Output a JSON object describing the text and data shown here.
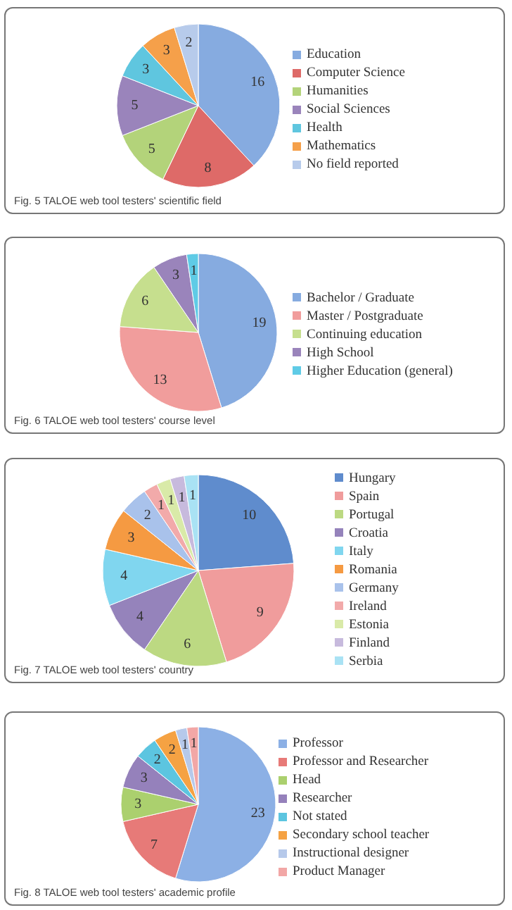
{
  "chart_data": [
    {
      "type": "pie",
      "title": "Fig. 5 TALOE web tool testers' scientific field",
      "categories": [
        "Education",
        "Computer Science",
        "Humanities",
        "Social Sciences",
        "Health",
        "Mathematics",
        "No field reported"
      ],
      "values": [
        16,
        8,
        5,
        5,
        3,
        3,
        2
      ],
      "colors": [
        "#86abe0",
        "#de6a68",
        "#b3d37a",
        "#9a84bb",
        "#5fc6df",
        "#f5a04a",
        "#b7cbeb"
      ],
      "data_labels": true,
      "legend": "right"
    },
    {
      "type": "pie",
      "title": "Fig. 6 TALOE web tool testers' course level",
      "categories": [
        "Bachelor / Graduate",
        "Master / Postgraduate",
        "Continuing education",
        "High School",
        "Higher Education (general)"
      ],
      "values": [
        19,
        13,
        6,
        3,
        1
      ],
      "colors": [
        "#86abe0",
        "#f19d9c",
        "#c6df8e",
        "#9a84bb",
        "#5fcbe6"
      ],
      "data_labels": true,
      "legend": "right"
    },
    {
      "type": "pie",
      "title": "Fig. 7 TALOE web tool testers' country",
      "categories": [
        "Hungary",
        "Spain",
        "Portugal",
        "Croatia",
        "Italy",
        "Romania",
        "Germany",
        "Ireland",
        "Estonia",
        "Finland",
        "Serbia"
      ],
      "values": [
        10,
        9,
        6,
        4,
        4,
        3,
        2,
        1,
        1,
        1,
        1
      ],
      "colors": [
        "#5f8ccd",
        "#f09c9c",
        "#bcd982",
        "#9583bb",
        "#80d6ef",
        "#f59a42",
        "#a9c2eb",
        "#f2aaaa",
        "#d9eaa8",
        "#c7badd",
        "#a9e2f4"
      ],
      "data_labels": true,
      "legend": "right"
    },
    {
      "type": "pie",
      "title": "Fig. 8 TALOE web tool testers' academic profile",
      "categories": [
        "Professor",
        "Professor and Researcher",
        "Head",
        "Researcher",
        "Not stated",
        "Secondary school teacher",
        "Instructional designer",
        "Product Manager"
      ],
      "values": [
        23,
        7,
        3,
        3,
        2,
        2,
        1,
        1
      ],
      "colors": [
        "#8cb0e5",
        "#e77a78",
        "#abd06e",
        "#9581bb",
        "#5cc5e0",
        "#f5a243",
        "#b6c9ea",
        "#f2a7a6"
      ],
      "data_labels": true,
      "legend": "right"
    }
  ]
}
